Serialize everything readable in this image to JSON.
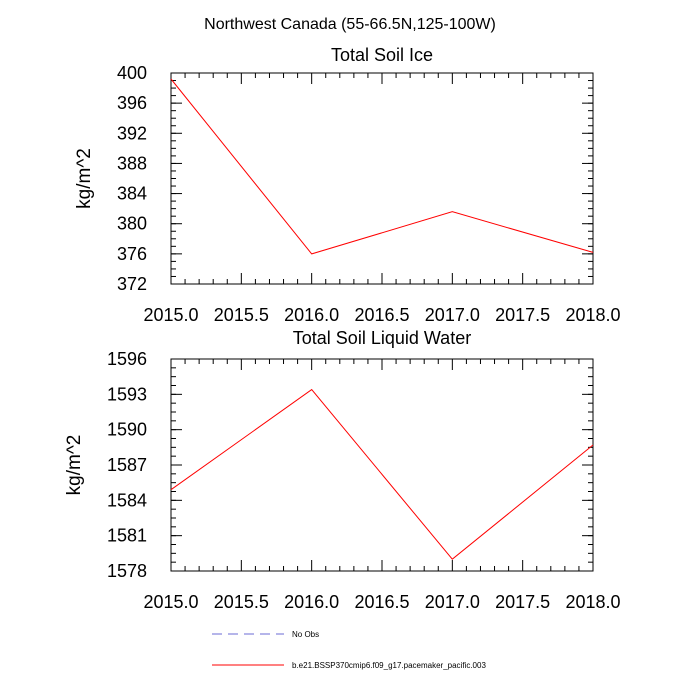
{
  "figure": {
    "title": "Northwest Canada (55-66.5N,125-100W)"
  },
  "chart_data": [
    {
      "type": "line",
      "title": "Total Soil Ice",
      "xlabel": "",
      "ylabel": "kg/m^2",
      "xlim": [
        2015.0,
        2018.0
      ],
      "ylim": [
        372,
        400
      ],
      "xticks": [
        2015.0,
        2015.5,
        2016.0,
        2016.5,
        2017.0,
        2017.5,
        2018.0
      ],
      "xtick_labels": [
        "2015.0",
        "2015.5",
        "2016.0",
        "2016.5",
        "2017.0",
        "2017.5",
        "2018.0"
      ],
      "yticks": [
        372,
        376,
        380,
        384,
        388,
        392,
        396,
        400
      ],
      "ytick_labels": [
        "372",
        "376",
        "380",
        "384",
        "388",
        "392",
        "396",
        "400"
      ],
      "series": [
        {
          "name": "b.e21.BSSP370cmip6.f09_g17.pacemaker_pacific.003",
          "color": "#ff0000",
          "x": [
            2015.0,
            2016.0,
            2017.0,
            2018.0
          ],
          "y": [
            399.2,
            376.0,
            381.6,
            376.2
          ]
        }
      ]
    },
    {
      "type": "line",
      "title": "Total Soil Liquid Water",
      "xlabel": "",
      "ylabel": "kg/m^2",
      "xlim": [
        2015.0,
        2018.0
      ],
      "ylim": [
        1578,
        1596
      ],
      "xticks": [
        2015.0,
        2015.5,
        2016.0,
        2016.5,
        2017.0,
        2017.5,
        2018.0
      ],
      "xtick_labels": [
        "2015.0",
        "2015.5",
        "2016.0",
        "2016.5",
        "2017.0",
        "2017.5",
        "2018.0"
      ],
      "yticks": [
        1578,
        1581,
        1584,
        1587,
        1590,
        1593,
        1596
      ],
      "ytick_labels": [
        "1578",
        "1581",
        "1584",
        "1587",
        "1590",
        "1593",
        "1596"
      ],
      "series": [
        {
          "name": "b.e21.BSSP370cmip6.f09_g17.pacemaker_pacific.003",
          "color": "#ff0000",
          "x": [
            2015.0,
            2016.0,
            2017.0,
            2018.0
          ],
          "y": [
            1584.9,
            1593.4,
            1579.0,
            1588.7
          ]
        }
      ]
    }
  ],
  "legend": {
    "placement": "bottom-center",
    "entries": [
      {
        "label": "No Obs",
        "color": "#6b6bd6",
        "style": "dashed"
      },
      {
        "label": "b.e21.BSSP370cmip6.f09_g17.pacemaker_pacific.003",
        "color": "#ff0000",
        "style": "solid"
      }
    ]
  }
}
